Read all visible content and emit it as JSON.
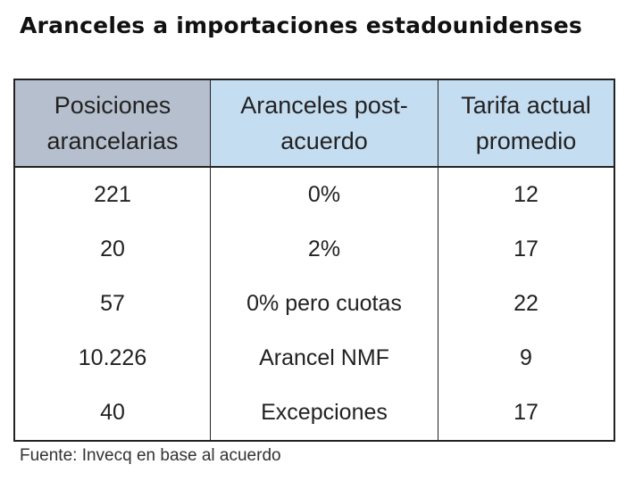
{
  "title": "Aranceles a importaciones estadounidenses",
  "colors": {
    "header_first": "#b6bfcd",
    "header_other": "#c5ddf1",
    "border": "#222222"
  },
  "table": {
    "headers": [
      [
        "Posiciones",
        "arancelarias"
      ],
      [
        "Aranceles post-",
        "acuerdo"
      ],
      [
        "Tarifa actual",
        "promedio"
      ]
    ],
    "rows": [
      [
        "221",
        "0%",
        "12"
      ],
      [
        "20",
        "2%",
        "17"
      ],
      [
        "57",
        "0% pero cuotas",
        "22"
      ],
      [
        "10.226",
        "Arancel NMF",
        "9"
      ],
      [
        "40",
        "Excepciones",
        "17"
      ]
    ]
  },
  "source": "Fuente: Invecq en base al acuerdo"
}
